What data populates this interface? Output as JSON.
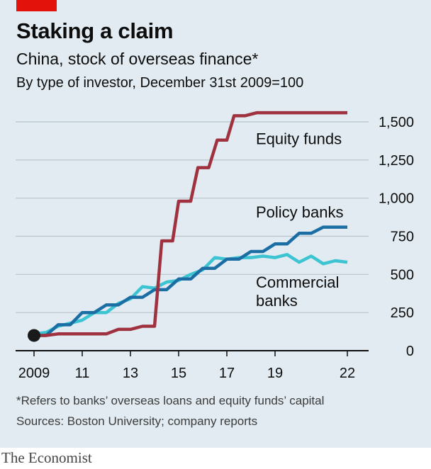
{
  "header": {
    "title": "Staking a claim",
    "subtitle": "China, stock of overseas finance*",
    "subsubtitle": "By type of investor, December 31st 2009=100"
  },
  "footer": {
    "footnote": "*Refers to banks’ overseas loans and equity funds’ capital",
    "source": "Sources: Boston University; company reports",
    "brand": "The Economist"
  },
  "colors": {
    "accent_red": "#e3120b",
    "equity_funds": "#a0323f",
    "policy_banks": "#1a6ea4",
    "commercial_banks": "#3cc4d2",
    "background": "#e1ebf1"
  },
  "chart_data": {
    "type": "line",
    "title": "Staking a claim",
    "ylim": [
      0,
      1500
    ],
    "xlim": [
      2009,
      2023
    ],
    "y_ticks": [
      0,
      250,
      500,
      750,
      1000,
      1250,
      1500
    ],
    "y_tick_labels": [
      "0",
      "250",
      "500",
      "750",
      "1,000",
      "1,250",
      "1,500"
    ],
    "x_ticks": [
      2009,
      2011,
      2013,
      2015,
      2017,
      2019,
      2022
    ],
    "x_tick_labels": [
      "2009",
      "11",
      "13",
      "15",
      "17",
      "19",
      "22"
    ],
    "grid": true,
    "series": [
      {
        "name": "Equity funds",
        "color": "#a0323f",
        "points": [
          [
            2009.0,
            100
          ],
          [
            2009.5,
            100
          ],
          [
            2010.0,
            110
          ],
          [
            2010.5,
            110
          ],
          [
            2011.0,
            110
          ],
          [
            2011.5,
            110
          ],
          [
            2012.0,
            110
          ],
          [
            2012.5,
            140
          ],
          [
            2013.0,
            140
          ],
          [
            2013.5,
            160
          ],
          [
            2014.0,
            160
          ],
          [
            2014.3,
            720
          ],
          [
            2014.75,
            720
          ],
          [
            2015.0,
            980
          ],
          [
            2015.5,
            980
          ],
          [
            2015.8,
            1200
          ],
          [
            2016.25,
            1200
          ],
          [
            2016.6,
            1380
          ],
          [
            2017.0,
            1380
          ],
          [
            2017.3,
            1540
          ],
          [
            2017.75,
            1540
          ],
          [
            2018.25,
            1560
          ],
          [
            2019.0,
            1560
          ],
          [
            2020.0,
            1560
          ],
          [
            2021.0,
            1560
          ],
          [
            2022.0,
            1560
          ]
        ]
      },
      {
        "name": "Policy banks",
        "color": "#1a6ea4",
        "points": [
          [
            2009.0,
            100
          ],
          [
            2009.5,
            100
          ],
          [
            2010.0,
            170
          ],
          [
            2010.5,
            170
          ],
          [
            2011.0,
            250
          ],
          [
            2011.5,
            250
          ],
          [
            2012.0,
            300
          ],
          [
            2012.5,
            300
          ],
          [
            2013.0,
            350
          ],
          [
            2013.5,
            350
          ],
          [
            2014.0,
            400
          ],
          [
            2014.5,
            400
          ],
          [
            2015.0,
            470
          ],
          [
            2015.5,
            470
          ],
          [
            2016.0,
            540
          ],
          [
            2016.5,
            540
          ],
          [
            2017.0,
            600
          ],
          [
            2017.5,
            600
          ],
          [
            2018.0,
            650
          ],
          [
            2018.5,
            650
          ],
          [
            2019.0,
            700
          ],
          [
            2019.5,
            700
          ],
          [
            2020.0,
            770
          ],
          [
            2020.5,
            770
          ],
          [
            2021.0,
            810
          ],
          [
            2021.5,
            810
          ],
          [
            2022.0,
            810
          ]
        ]
      },
      {
        "name": "Commercial banks",
        "color": "#3cc4d2",
        "points": [
          [
            2009.0,
            110
          ],
          [
            2009.5,
            120
          ],
          [
            2010.0,
            160
          ],
          [
            2010.5,
            180
          ],
          [
            2011.0,
            200
          ],
          [
            2011.5,
            250
          ],
          [
            2012.0,
            250
          ],
          [
            2012.5,
            310
          ],
          [
            2013.0,
            340
          ],
          [
            2013.5,
            420
          ],
          [
            2014.0,
            410
          ],
          [
            2014.5,
            450
          ],
          [
            2015.0,
            460
          ],
          [
            2015.5,
            500
          ],
          [
            2016.0,
            530
          ],
          [
            2016.5,
            610
          ],
          [
            2017.0,
            600
          ],
          [
            2017.5,
            610
          ],
          [
            2018.0,
            610
          ],
          [
            2018.5,
            620
          ],
          [
            2019.0,
            610
          ],
          [
            2019.5,
            630
          ],
          [
            2020.0,
            580
          ],
          [
            2020.5,
            620
          ],
          [
            2021.0,
            570
          ],
          [
            2021.5,
            590
          ],
          [
            2022.0,
            580
          ]
        ]
      }
    ],
    "start_marker": {
      "x": 2009,
      "y": 100,
      "color": "#1a1a1a"
    },
    "series_labels": [
      {
        "lines": [
          "Equity funds"
        ],
        "x": 2018.5,
        "y": 1390
      },
      {
        "lines": [
          "Policy banks"
        ],
        "x": 2018.5,
        "y": 910
      },
      {
        "lines": [
          "Commercial",
          "banks"
        ],
        "x": 2018.5,
        "y": 450
      }
    ]
  }
}
